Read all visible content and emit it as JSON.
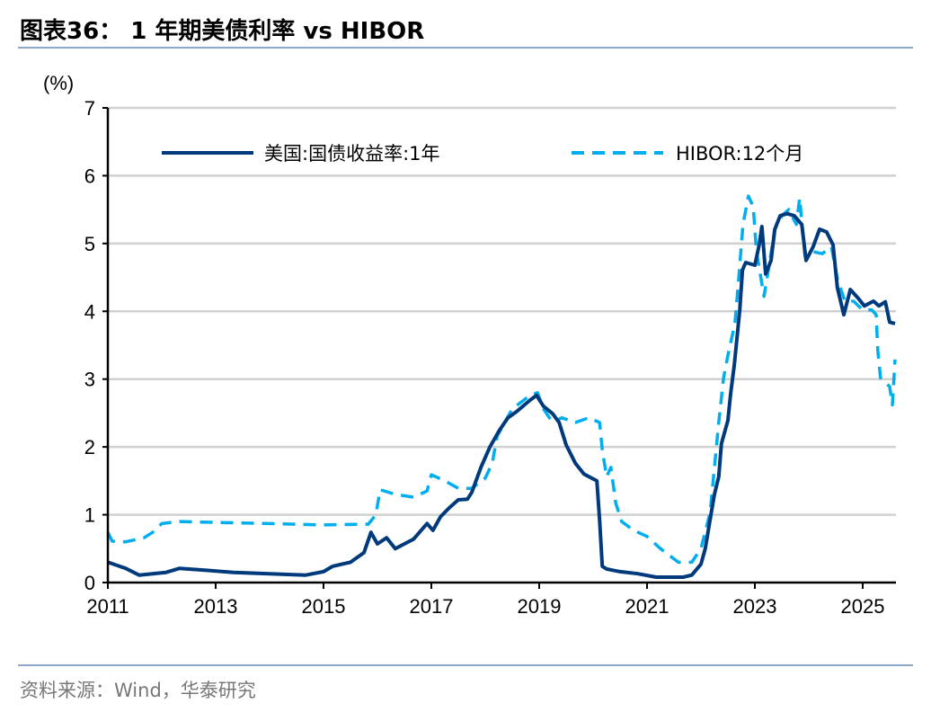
{
  "header": {
    "title": "图表36：  1 年期美债利率 vs HIBOR"
  },
  "footer": {
    "source": "资料来源：Wind，华泰研究"
  },
  "chart_data": {
    "type": "line",
    "title": "",
    "ylabel": "(%)",
    "xlabel": "",
    "ylim": [
      0,
      7
    ],
    "xlim": [
      2011,
      2025.62
    ],
    "yticks": [
      "0",
      "1",
      "2",
      "3",
      "4",
      "5",
      "6",
      "7"
    ],
    "xticks": [
      "2011",
      "2013",
      "2015",
      "2017",
      "2019",
      "2021",
      "2023",
      "2025"
    ],
    "grid": true,
    "legend": "top",
    "series": [
      {
        "name": "美国:国债收益率:1年",
        "color": "#003a7d",
        "style": "solid",
        "x": [
          2011.0,
          2011.33,
          2011.58,
          2012.08,
          2012.33,
          2012.83,
          2013.33,
          2014.0,
          2014.67,
          2015.0,
          2015.17,
          2015.5,
          2015.75,
          2015.88,
          2016.0,
          2016.17,
          2016.33,
          2016.5,
          2016.67,
          2016.92,
          2017.03,
          2017.17,
          2017.33,
          2017.5,
          2017.67,
          2017.75,
          2017.92,
          2018.08,
          2018.25,
          2018.42,
          2018.58,
          2018.83,
          2018.95,
          2019.08,
          2019.25,
          2019.37,
          2019.5,
          2019.67,
          2019.83,
          2020.07,
          2020.12,
          2020.17,
          2020.25,
          2020.5,
          2020.83,
          2021.17,
          2021.67,
          2021.83,
          2022.0,
          2022.08,
          2022.17,
          2022.25,
          2022.33,
          2022.38,
          2022.5,
          2022.55,
          2022.62,
          2022.67,
          2022.72,
          2022.77,
          2022.83,
          2023.0,
          2023.08,
          2023.13,
          2023.2,
          2023.3,
          2023.37,
          2023.47,
          2023.6,
          2023.73,
          2023.87,
          2023.95,
          2024.08,
          2024.2,
          2024.33,
          2024.45,
          2024.53,
          2024.65,
          2024.77,
          2024.92,
          2025.03,
          2025.2,
          2025.3,
          2025.42,
          2025.5,
          2025.6
        ],
        "y": [
          0.3,
          0.21,
          0.11,
          0.15,
          0.21,
          0.18,
          0.15,
          0.13,
          0.11,
          0.16,
          0.24,
          0.3,
          0.44,
          0.74,
          0.57,
          0.66,
          0.5,
          0.57,
          0.64,
          0.87,
          0.77,
          0.97,
          1.1,
          1.22,
          1.23,
          1.33,
          1.7,
          1.99,
          2.23,
          2.43,
          2.52,
          2.69,
          2.76,
          2.6,
          2.49,
          2.36,
          2.03,
          1.76,
          1.6,
          1.5,
          0.93,
          0.24,
          0.2,
          0.16,
          0.13,
          0.08,
          0.08,
          0.11,
          0.27,
          0.5,
          0.93,
          1.3,
          1.56,
          2.05,
          2.39,
          2.78,
          3.22,
          3.62,
          4.02,
          4.61,
          4.72,
          4.68,
          4.98,
          5.25,
          4.55,
          4.75,
          5.21,
          5.41,
          5.44,
          5.41,
          5.28,
          4.75,
          4.95,
          5.21,
          5.17,
          4.98,
          4.35,
          3.95,
          4.32,
          4.19,
          4.08,
          4.15,
          4.08,
          4.14,
          3.84,
          3.82
        ]
      },
      {
        "name": "HIBOR:12个月",
        "color": "#00aeef",
        "style": "dashed",
        "x": [
          2011.0,
          2011.08,
          2011.33,
          2011.67,
          2011.83,
          2012.0,
          2012.33,
          2012.83,
          2014.0,
          2015.0,
          2015.83,
          2015.97,
          2016.05,
          2016.33,
          2016.67,
          2016.92,
          2017.0,
          2017.25,
          2017.5,
          2017.75,
          2018.0,
          2018.13,
          2018.22,
          2018.5,
          2018.83,
          2018.97,
          2019.08,
          2019.25,
          2019.42,
          2019.67,
          2019.92,
          2020.12,
          2020.17,
          2020.25,
          2020.33,
          2020.42,
          2020.53,
          2020.75,
          2021.0,
          2021.25,
          2021.58,
          2021.83,
          2022.0,
          2022.17,
          2022.33,
          2022.42,
          2022.5,
          2022.63,
          2022.7,
          2022.78,
          2022.88,
          2022.97,
          2023.03,
          2023.1,
          2023.17,
          2023.25,
          2023.37,
          2023.5,
          2023.63,
          2023.77,
          2023.83,
          2023.93,
          2024.08,
          2024.25,
          2024.42,
          2024.53,
          2024.67,
          2024.83,
          2025.0,
          2025.17,
          2025.25,
          2025.28,
          2025.33,
          2025.42,
          2025.5,
          2025.55,
          2025.6
        ],
        "y": [
          0.74,
          0.61,
          0.6,
          0.66,
          0.74,
          0.87,
          0.9,
          0.89,
          0.87,
          0.85,
          0.86,
          1.0,
          1.37,
          1.3,
          1.26,
          1.35,
          1.59,
          1.5,
          1.39,
          1.39,
          1.54,
          1.76,
          2.16,
          2.56,
          2.76,
          2.8,
          2.56,
          2.36,
          2.43,
          2.36,
          2.43,
          2.36,
          1.96,
          1.56,
          1.7,
          1.17,
          0.9,
          0.77,
          0.68,
          0.5,
          0.3,
          0.3,
          0.5,
          1.03,
          2.36,
          3.02,
          3.35,
          3.82,
          4.48,
          5.28,
          5.7,
          5.54,
          4.88,
          4.55,
          4.22,
          4.61,
          5.21,
          5.41,
          5.5,
          5.28,
          5.67,
          4.81,
          4.88,
          4.85,
          4.95,
          4.48,
          4.15,
          4.15,
          4.02,
          4.02,
          3.95,
          3.42,
          3.02,
          2.95,
          2.89,
          2.62,
          3.29
        ]
      }
    ]
  }
}
